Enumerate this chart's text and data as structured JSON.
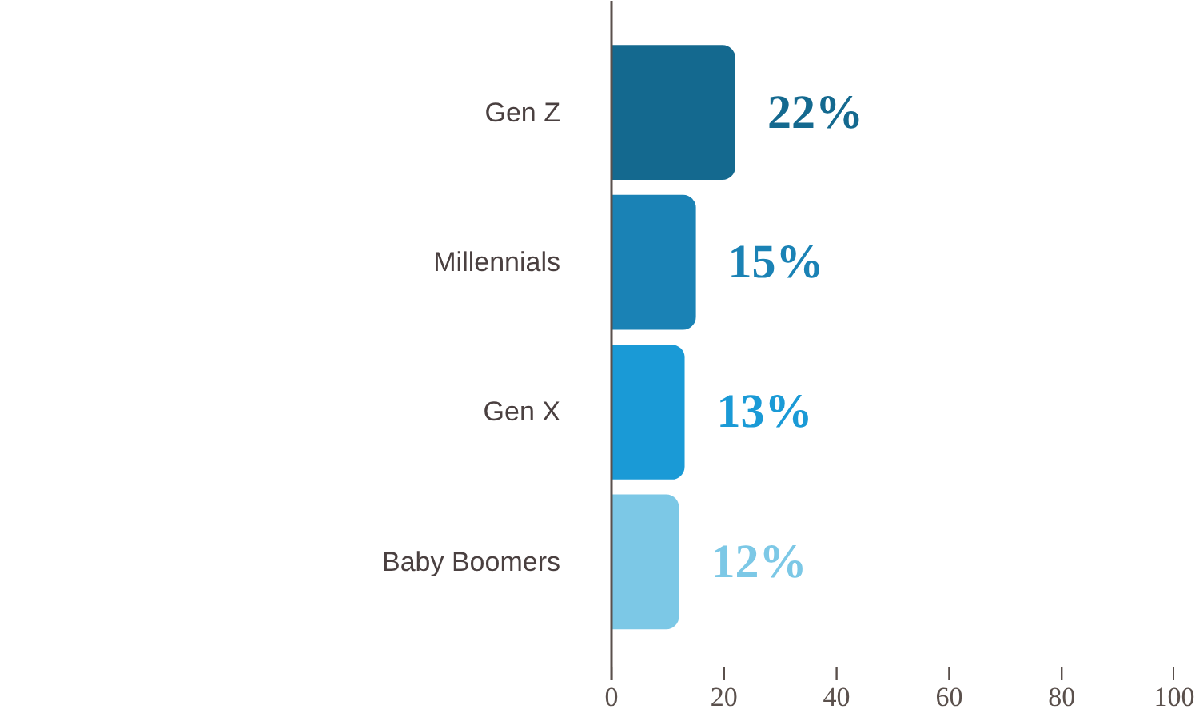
{
  "chart_data": {
    "type": "bar",
    "orientation": "horizontal",
    "categories": [
      "Gen Z",
      "Millennials",
      "Gen X",
      "Baby Boomers"
    ],
    "values": [
      22,
      15,
      13,
      12
    ],
    "colors": [
      "#14698f",
      "#1a82b5",
      "#1a9ad6",
      "#7cc8e6"
    ],
    "value_labels": [
      "22%",
      "15%",
      "13%",
      "12%"
    ],
    "xlim": [
      0,
      100
    ],
    "xticks": [
      0,
      20,
      40,
      60,
      80,
      100
    ],
    "grid": false
  }
}
